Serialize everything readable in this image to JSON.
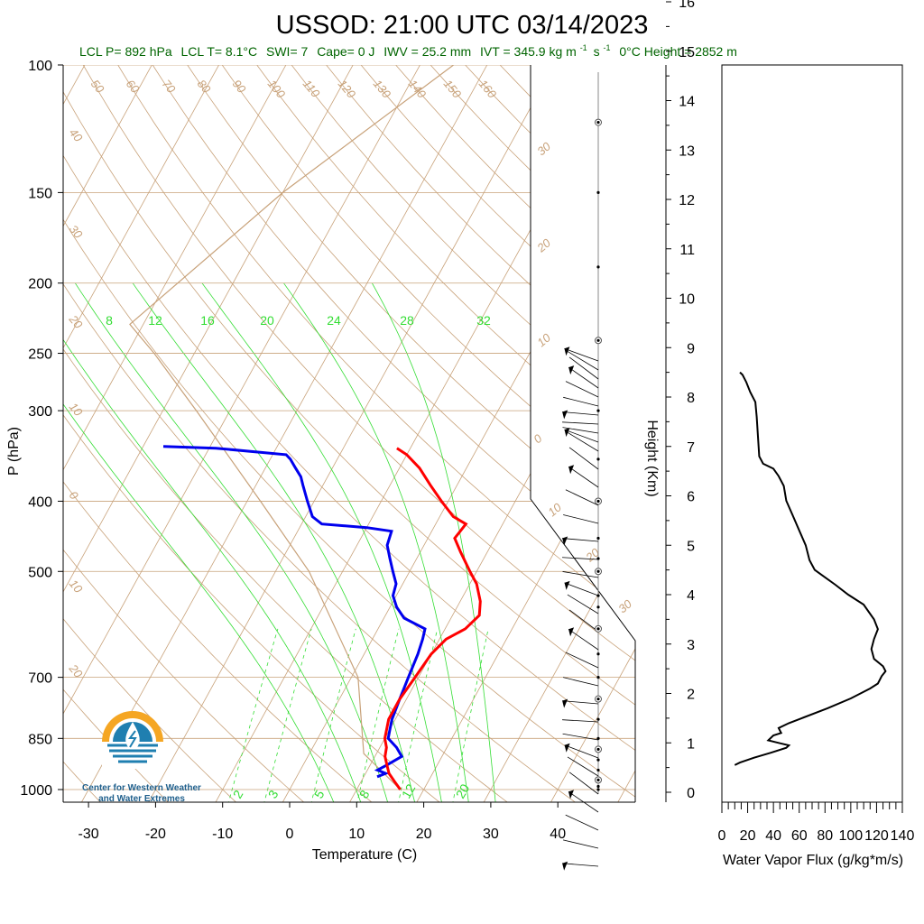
{
  "title": "USSOD: 21:00 UTC 03/14/2023",
  "subtitle": {
    "lcl_p": "LCL P= 892 hPa",
    "lcl_t": "LCL T= 8.1°C",
    "swi": "SWI= 7",
    "cape": "Cape= 0 J",
    "iwv": "IWV = 25.2 mm",
    "ivt": "IVT = 345.9 kg m",
    "ivt_exp1": "-1",
    "ivt_s": "s",
    "ivt_exp2": "-1",
    "zero_height": "0°C Height = 2852 m"
  },
  "logo_text": [
    "Center for Western Weather",
    "and Water Extremes"
  ],
  "colors": {
    "temperature": "#ff0000",
    "dewpoint": "#0000ee",
    "parcel": "#c8a27a",
    "isotherm": "#c8a27a",
    "mixing_ratio": "#33dd33",
    "moist_adiabat": "#33dd33",
    "title_sub": "#006400",
    "logo_orange": "#f5a623",
    "logo_blue": "#1f7fb0"
  },
  "chart_data": [
    {
      "type": "line",
      "name": "skew-t",
      "xlabel": "Temperature (C)",
      "ylabel": "P (hPa)",
      "y2label": "Height (Km)",
      "x_ticks": [
        -30,
        -20,
        -10,
        0,
        10,
        20,
        30,
        40
      ],
      "p_ticks": [
        100,
        150,
        200,
        250,
        300,
        400,
        500,
        700,
        850,
        1000
      ],
      "height_ticks": [
        0,
        1,
        2,
        3,
        4,
        5,
        6,
        7,
        8,
        9,
        10,
        11,
        12,
        13,
        14,
        15,
        16
      ],
      "y_scale": "log",
      "ylim": [
        1050,
        100
      ],
      "xlim_at_1000hPa": [
        -33,
        50
      ],
      "skew_isotherm_labels": [
        "50",
        "60",
        "70",
        "80",
        "90",
        "100",
        "110",
        "120",
        "130",
        "140",
        "150",
        "160"
      ],
      "left_edge_labels": [
        "40",
        "30",
        "20",
        "10",
        "0",
        "10",
        "20"
      ],
      "right_edge_labels": [
        "30",
        "20",
        "10",
        "0",
        "10",
        "20",
        "30"
      ],
      "mixing_ratio_top_labels": [
        "8",
        "12",
        "16",
        "20",
        "24",
        "28",
        "32"
      ],
      "mixing_ratio_bottom_labels": [
        "2",
        "3",
        "5",
        "8",
        "12",
        "20"
      ],
      "series": [
        {
          "key": "temperature",
          "points": [
            [
              1000,
              16.5
            ],
            [
              975,
              15.0
            ],
            [
              950,
              13.5
            ],
            [
              925,
              12.5
            ],
            [
              900,
              11.5
            ],
            [
              875,
              11.0
            ],
            [
              850,
              10.0
            ],
            [
              800,
              9.0
            ],
            [
              750,
              9.0
            ],
            [
              700,
              9.5
            ],
            [
              650,
              10.0
            ],
            [
              620,
              11.0
            ],
            [
              600,
              13.0
            ],
            [
              575,
              14.0
            ],
            [
              550,
              13.0
            ],
            [
              520,
              11.0
            ],
            [
              500,
              9.0
            ],
            [
              470,
              6.0
            ],
            [
              450,
              4.0
            ],
            [
              430,
              4.5
            ],
            [
              420,
              2.0
            ],
            [
              400,
              -1.0
            ],
            [
              380,
              -4.0
            ],
            [
              360,
              -7.0
            ],
            [
              345,
              -10.0
            ],
            [
              338,
              -12.0
            ]
          ]
        },
        {
          "key": "dewpoint",
          "points": [
            [
              960,
              12.0
            ],
            [
              950,
              13.0
            ],
            [
              940,
              11.5
            ],
            [
              925,
              12.5
            ],
            [
              900,
              14.0
            ],
            [
              875,
              12.5
            ],
            [
              850,
              10.5
            ],
            [
              825,
              10.0
            ],
            [
              800,
              9.5
            ],
            [
              750,
              9.0
            ],
            [
              700,
              8.5
            ],
            [
              650,
              8.0
            ],
            [
              620,
              7.5
            ],
            [
              600,
              7.0
            ],
            [
              580,
              3.0
            ],
            [
              560,
              1.0
            ],
            [
              540,
              -0.5
            ],
            [
              520,
              -1.0
            ],
            [
              500,
              -2.5
            ],
            [
              480,
              -4.0
            ],
            [
              460,
              -5.5
            ],
            [
              440,
              -6.0
            ],
            [
              435,
              -10.0
            ],
            [
              430,
              -17.0
            ],
            [
              420,
              -19.0
            ],
            [
              400,
              -21.0
            ],
            [
              380,
              -23.0
            ],
            [
              370,
              -24.0
            ],
            [
              360,
              -25.5
            ],
            [
              350,
              -27.0
            ],
            [
              345,
              -28.0
            ],
            [
              338,
              -39.0
            ],
            [
              336,
              -47.0
            ]
          ]
        },
        {
          "key": "parcel",
          "points": [
            [
              1000,
              16.5
            ],
            [
              892,
              8.1
            ],
            [
              700,
              1.0
            ],
            [
              500,
              -15.0
            ],
            [
              400,
              -28.0
            ],
            [
              300,
              -45.0
            ],
            [
              250,
              -56.0
            ],
            [
              228,
              -62.0
            ],
            [
              150,
              -50.0
            ],
            [
              100,
              -35.0
            ]
          ]
        }
      ]
    },
    {
      "type": "line",
      "name": "water-vapor-flux-profile",
      "xlabel": "Water Vapor Flux (g/kg*m/s)",
      "x_ticks": [
        0,
        20,
        40,
        60,
        80,
        100,
        120,
        140
      ],
      "xlim": [
        0,
        140
      ],
      "ylim_km": [
        -0.2,
        16.4
      ],
      "series": [
        {
          "key": "wvf",
          "points": [
            [
              0.55,
              10
            ],
            [
              0.6,
              14
            ],
            [
              0.7,
              25
            ],
            [
              0.8,
              38
            ],
            [
              0.9,
              50
            ],
            [
              0.95,
              52
            ],
            [
              1.0,
              44
            ],
            [
              1.05,
              36
            ],
            [
              1.15,
              40
            ],
            [
              1.2,
              46
            ],
            [
              1.3,
              44
            ],
            [
              1.4,
              52
            ],
            [
              1.5,
              62
            ],
            [
              1.7,
              82
            ],
            [
              1.9,
              100
            ],
            [
              2.1,
              115
            ],
            [
              2.2,
              121
            ],
            [
              2.35,
              124
            ],
            [
              2.45,
              127
            ],
            [
              2.55,
              125
            ],
            [
              2.7,
              118
            ],
            [
              2.9,
              116
            ],
            [
              3.1,
              118
            ],
            [
              3.3,
              121
            ],
            [
              3.5,
              118
            ],
            [
              3.8,
              110
            ],
            [
              4.0,
              98
            ],
            [
              4.2,
              88
            ],
            [
              4.35,
              80
            ],
            [
              4.5,
              72
            ],
            [
              4.7,
              68
            ],
            [
              5.0,
              65
            ],
            [
              5.3,
              60
            ],
            [
              5.6,
              55
            ],
            [
              5.9,
              50
            ],
            [
              6.2,
              48
            ],
            [
              6.4,
              44
            ],
            [
              6.55,
              40
            ],
            [
              6.65,
              32
            ],
            [
              6.8,
              29
            ],
            [
              7.2,
              28
            ],
            [
              7.6,
              27
            ],
            [
              7.9,
              26
            ],
            [
              8.1,
              22
            ],
            [
              8.3,
              19
            ],
            [
              8.45,
              16
            ],
            [
              8.5,
              14
            ]
          ]
        }
      ]
    }
  ],
  "side_profile": {
    "wind_heights": [
      400,
      410,
      420,
      430,
      440,
      450,
      460,
      470,
      480,
      490,
      500,
      520,
      540,
      560,
      580,
      600,
      620,
      640,
      660,
      680,
      700,
      720,
      740,
      760,
      780,
      800,
      820,
      840,
      860,
      880,
      900,
      920,
      940,
      960
    ],
    "dot_pressures": [
      120,
      150,
      190,
      240,
      300,
      350,
      400,
      450,
      480,
      500,
      540,
      560,
      600,
      650,
      700,
      750,
      800,
      850,
      880,
      910,
      940,
      970,
      990,
      1000
    ]
  }
}
